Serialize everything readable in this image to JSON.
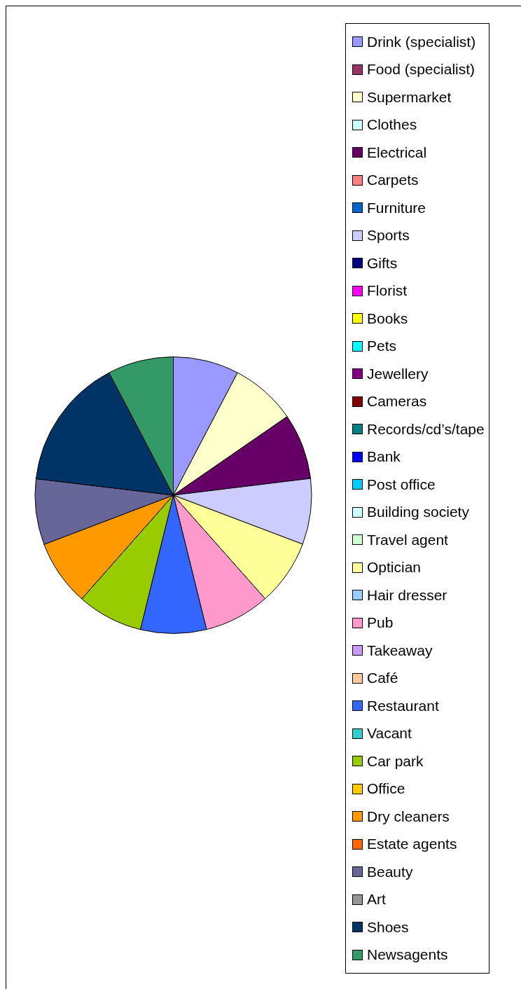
{
  "chart_data": {
    "type": "pie",
    "categories": [
      "Drink (specialist)",
      "Food (specialist)",
      "Supermarket",
      "Clothes",
      "Electrical",
      "Carpets",
      "Furniture",
      "Sports",
      "Gifts",
      "Florist",
      "Books",
      "Pets",
      "Jewellery",
      "Cameras",
      "Records/cd’s/tape",
      "Bank",
      "Post office",
      "Building society",
      "Travel agent",
      "Optician",
      "Hair dresser",
      "Pub",
      "Takeaway",
      "Café",
      "Restaurant",
      "Vacant",
      "Car park",
      "Office",
      "Dry cleaners",
      "Estate agents",
      "Beauty",
      "Art",
      "Shoes",
      "Newsagents"
    ],
    "values": [
      7.69,
      0,
      7.69,
      0,
      7.69,
      0,
      0,
      7.69,
      0,
      0,
      0,
      0,
      0,
      0,
      0,
      0,
      0,
      0,
      0,
      7.69,
      0,
      7.69,
      0,
      0,
      7.69,
      0,
      7.69,
      0,
      7.69,
      0,
      7.69,
      0,
      15.41,
      7.69
    ],
    "colors": [
      "#9999ff",
      "#993366",
      "#ffffcc",
      "#ccffff",
      "#660066",
      "#ff8080",
      "#0066cc",
      "#ccccff",
      "#000080",
      "#ff00ff",
      "#ffff00",
      "#00ffff",
      "#800080",
      "#800000",
      "#008080",
      "#0000ff",
      "#00ccff",
      "#ccffff",
      "#ccffcc",
      "#ffff99",
      "#99ccff",
      "#ff99cc",
      "#cc99ff",
      "#ffcc99",
      "#3366ff",
      "#33cccc",
      "#99cc00",
      "#ffcc00",
      "#ff9900",
      "#ff6600",
      "#666699",
      "#969696",
      "#003366",
      "#339966"
    ],
    "legend": "right"
  }
}
